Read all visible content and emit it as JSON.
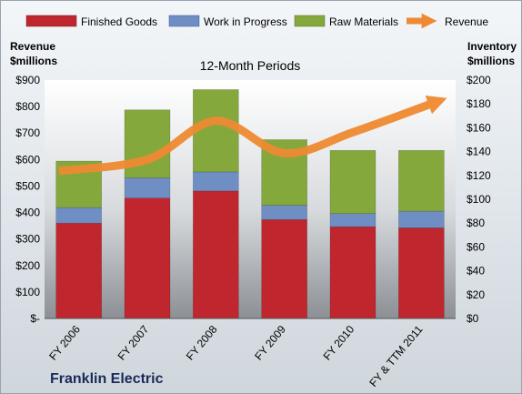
{
  "chart_data": {
    "type": "bar",
    "stacked": true,
    "title": "12-Month Periods",
    "footer": "Franklin Electric",
    "categories": [
      "FY 2006",
      "FY 2007",
      "FY 2008",
      "FY 2009",
      "FY 2010",
      "FY & TTM 2011"
    ],
    "series": [
      {
        "name": "Finished Goods",
        "values": [
          80,
          101,
          107,
          83,
          77,
          76
        ],
        "color": "#c0262e",
        "axis": "right"
      },
      {
        "name": "Work in Progress",
        "values": [
          13,
          17,
          16,
          12,
          11,
          14
        ],
        "color": "#6f8fc4",
        "axis": "right"
      },
      {
        "name": "Raw Materials",
        "values": [
          39,
          57,
          69,
          55,
          53,
          51
        ],
        "color": "#84a83c",
        "axis": "right"
      },
      {
        "name": "Revenue",
        "type": "line",
        "values": [
          557,
          600,
          746,
          624,
          703,
          812
        ],
        "color": "#ef8a32",
        "axis": "left"
      }
    ],
    "left_axis": {
      "title_line1": "Revenue",
      "title_line2": "$millions",
      "min": 0,
      "max": 900,
      "step": 100,
      "tick_labels": [
        "$-",
        "$100",
        "$200",
        "$300",
        "$400",
        "$500",
        "$600",
        "$700",
        "$800",
        "$900"
      ]
    },
    "right_axis": {
      "title_line1": "Inventory",
      "title_line2": "$millions",
      "min": 0,
      "max": 200,
      "step": 20,
      "tick_labels": [
        "$0",
        "$20",
        "$40",
        "$60",
        "$80",
        "$100",
        "$120",
        "$140",
        "$160",
        "$180",
        "$200"
      ]
    },
    "legend_position": "top",
    "grid": false
  }
}
